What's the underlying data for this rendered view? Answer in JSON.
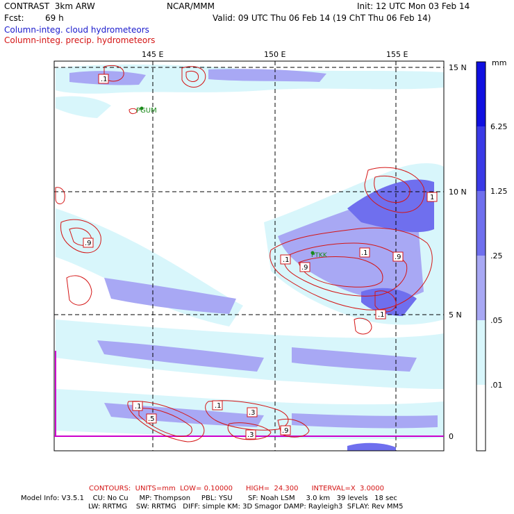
{
  "header": {
    "model": "CONTRAST  3km ARW",
    "center": "NCAR/MMM",
    "init": "Init: 12 UTC Mon 03 Feb 14",
    "fcst_label": "Fcst:",
    "fcst_value": "69 h",
    "valid": "Valid: 09 UTC Thu 06 Feb 14 (19 ChT Thu 06 Feb 14)",
    "field1": "Column-integ. cloud hydrometeors",
    "field2": "Column-integ. precip. hydrometeors"
  },
  "map": {
    "lon_labels": [
      "145 E",
      "150 E",
      "155 E"
    ],
    "lat_labels": [
      "15 N",
      "10 N",
      "5 N",
      "0"
    ],
    "stations": [
      {
        "name": "PGUM"
      },
      {
        "name": "PTKK"
      }
    ],
    "contour_labels": [
      ".1",
      ".9",
      ".1",
      ".9",
      ".1",
      "1",
      ".9",
      ".1",
      ".1",
      ".5",
      ".1",
      ".3",
      ".3",
      ".9"
    ]
  },
  "legend": {
    "unit": "mm",
    "levels": [
      "6.25",
      "1.25",
      ".25",
      ".05",
      ".01"
    ],
    "colors": [
      "#1010e0",
      "#3a3ae6",
      "#6f6fee",
      "#a8a8f4",
      "#d8f6fb",
      "#ffffff"
    ]
  },
  "footer": {
    "contours": "CONTOURS:  UNITS=mm  LOW= 0.10000      HIGH=  24.300      INTERVAL=X  3.0000",
    "model_info_1": "Model Info: V3.5.1    CU: No Cu     MP: Thompson     PBL: YSU       SF: Noah LSM     3.0 km   39 levels   18 sec",
    "model_info_2": "LW: RRTMG    SW: RRTMG   DIFF: simple KM: 3D Smagor DAMP: Rayleigh3  SFLAY: Rev MM5"
  },
  "colors": {
    "cloud_light": "#d8f6fb",
    "cloud_mid": "#a8a8f4",
    "cloud_dark": "#6f6fee",
    "precip_contour": "#d41414",
    "station": "#1a8a1a",
    "equator_line": "#cc00cc"
  }
}
